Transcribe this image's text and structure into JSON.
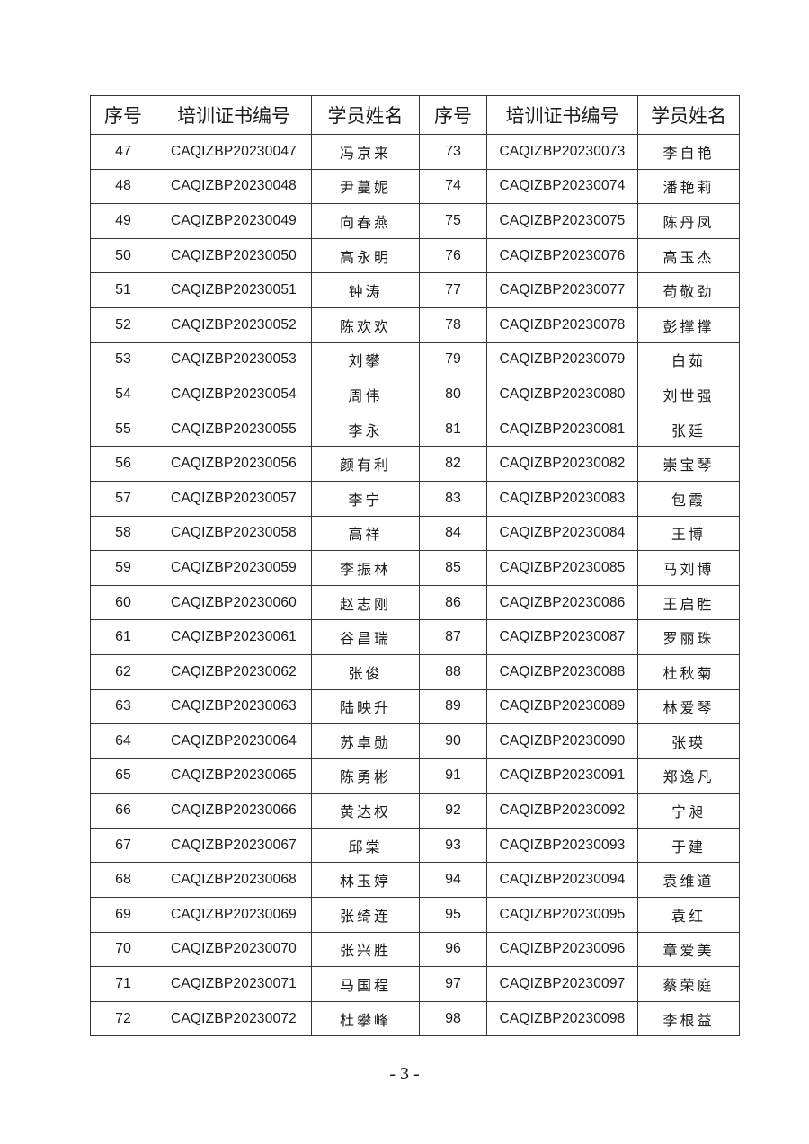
{
  "headers": [
    "序号",
    "培训证书编号",
    "学员姓名",
    "序号",
    "培训证书编号",
    "学员姓名"
  ],
  "rows": [
    [
      "47",
      "CAQIZBP20230047",
      "冯京来",
      "73",
      "CAQIZBP20230073",
      "李自艳"
    ],
    [
      "48",
      "CAQIZBP20230048",
      "尹蔓妮",
      "74",
      "CAQIZBP20230074",
      "潘艳莉"
    ],
    [
      "49",
      "CAQIZBP20230049",
      "向春燕",
      "75",
      "CAQIZBP20230075",
      "陈丹凤"
    ],
    [
      "50",
      "CAQIZBP20230050",
      "高永明",
      "76",
      "CAQIZBP20230076",
      "高玉杰"
    ],
    [
      "51",
      "CAQIZBP20230051",
      "钟涛",
      "77",
      "CAQIZBP20230077",
      "苟敬劲"
    ],
    [
      "52",
      "CAQIZBP20230052",
      "陈欢欢",
      "78",
      "CAQIZBP20230078",
      "彭撑撑"
    ],
    [
      "53",
      "CAQIZBP20230053",
      "刘攀",
      "79",
      "CAQIZBP20230079",
      "白茹"
    ],
    [
      "54",
      "CAQIZBP20230054",
      "周伟",
      "80",
      "CAQIZBP20230080",
      "刘世强"
    ],
    [
      "55",
      "CAQIZBP20230055",
      "李永",
      "81",
      "CAQIZBP20230081",
      "张廷"
    ],
    [
      "56",
      "CAQIZBP20230056",
      "颜有利",
      "82",
      "CAQIZBP20230082",
      "崇宝琴"
    ],
    [
      "57",
      "CAQIZBP20230057",
      "李宁",
      "83",
      "CAQIZBP20230083",
      "包霞"
    ],
    [
      "58",
      "CAQIZBP20230058",
      "高祥",
      "84",
      "CAQIZBP20230084",
      "王博"
    ],
    [
      "59",
      "CAQIZBP20230059",
      "李振林",
      "85",
      "CAQIZBP20230085",
      "马刘博"
    ],
    [
      "60",
      "CAQIZBP20230060",
      "赵志刚",
      "86",
      "CAQIZBP20230086",
      "王启胜"
    ],
    [
      "61",
      "CAQIZBP20230061",
      "谷昌瑞",
      "87",
      "CAQIZBP20230087",
      "罗丽珠"
    ],
    [
      "62",
      "CAQIZBP20230062",
      "张俊",
      "88",
      "CAQIZBP20230088",
      "杜秋菊"
    ],
    [
      "63",
      "CAQIZBP20230063",
      "陆映升",
      "89",
      "CAQIZBP20230089",
      "林爱琴"
    ],
    [
      "64",
      "CAQIZBP20230064",
      "苏卓勋",
      "90",
      "CAQIZBP20230090",
      "张瑛"
    ],
    [
      "65",
      "CAQIZBP20230065",
      "陈勇彬",
      "91",
      "CAQIZBP20230091",
      "郑逸凡"
    ],
    [
      "66",
      "CAQIZBP20230066",
      "黄达权",
      "92",
      "CAQIZBP20230092",
      "宁昶"
    ],
    [
      "67",
      "CAQIZBP20230067",
      "邱棠",
      "93",
      "CAQIZBP20230093",
      "于建"
    ],
    [
      "68",
      "CAQIZBP20230068",
      "林玉婷",
      "94",
      "CAQIZBP20230094",
      "袁维道"
    ],
    [
      "69",
      "CAQIZBP20230069",
      "张绮连",
      "95",
      "CAQIZBP20230095",
      "袁红"
    ],
    [
      "70",
      "CAQIZBP20230070",
      "张兴胜",
      "96",
      "CAQIZBP20230096",
      "章爱美"
    ],
    [
      "71",
      "CAQIZBP20230071",
      "马国程",
      "97",
      "CAQIZBP20230097",
      "蔡荣庭"
    ],
    [
      "72",
      "CAQIZBP20230072",
      "杜攀峰",
      "98",
      "CAQIZBP20230098",
      "李根益"
    ]
  ],
  "page_number": "- 3 -"
}
